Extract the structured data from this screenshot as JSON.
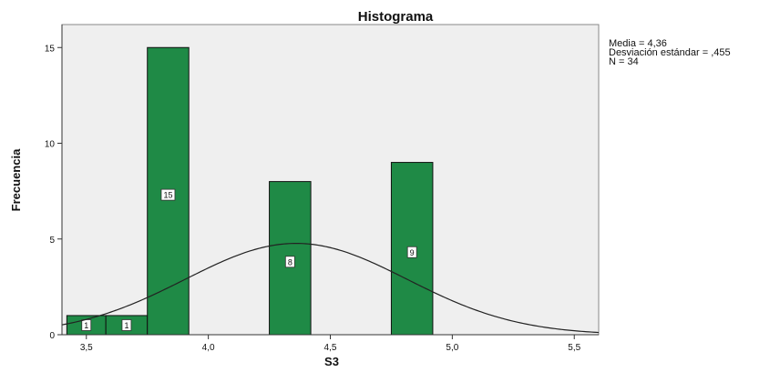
{
  "chart_data": {
    "type": "bar",
    "title": "Histograma",
    "xlabel": "S3",
    "ylabel": "Frecuencia",
    "bins": [
      {
        "start": 3.42,
        "end": 3.58,
        "count": 1
      },
      {
        "start": 3.58,
        "end": 3.75,
        "count": 1
      },
      {
        "start": 3.75,
        "end": 3.92,
        "count": 15
      },
      {
        "start": 4.25,
        "end": 4.42,
        "count": 8
      },
      {
        "start": 4.75,
        "end": 4.92,
        "count": 9
      }
    ],
    "value_labels": [
      "1",
      "1",
      "15",
      "8",
      "9"
    ],
    "xlim": [
      3.4,
      5.6
    ],
    "ylim": [
      0,
      16.2
    ],
    "x_ticks": [
      3.5,
      4.0,
      4.5,
      5.0,
      5.5
    ],
    "x_tick_labels": [
      "3,5",
      "4,0",
      "4,5",
      "5,0",
      "5,5"
    ],
    "y_ticks": [
      0,
      5,
      10,
      15
    ],
    "y_tick_labels": [
      "0",
      "5",
      "10",
      "15"
    ],
    "normal_curve": {
      "mean": 4.36,
      "sd": 0.455,
      "n": 34
    },
    "stats_text": {
      "mean": "Media = 4,36",
      "sd": "Desviación estándar = ,455",
      "n": "N = 34"
    },
    "grid": false,
    "legend": "none",
    "colors": {
      "bar_fill": "#1f8a46",
      "bar_stroke": "#111111",
      "plot_background": "#efefef",
      "curve": "#222222"
    }
  }
}
